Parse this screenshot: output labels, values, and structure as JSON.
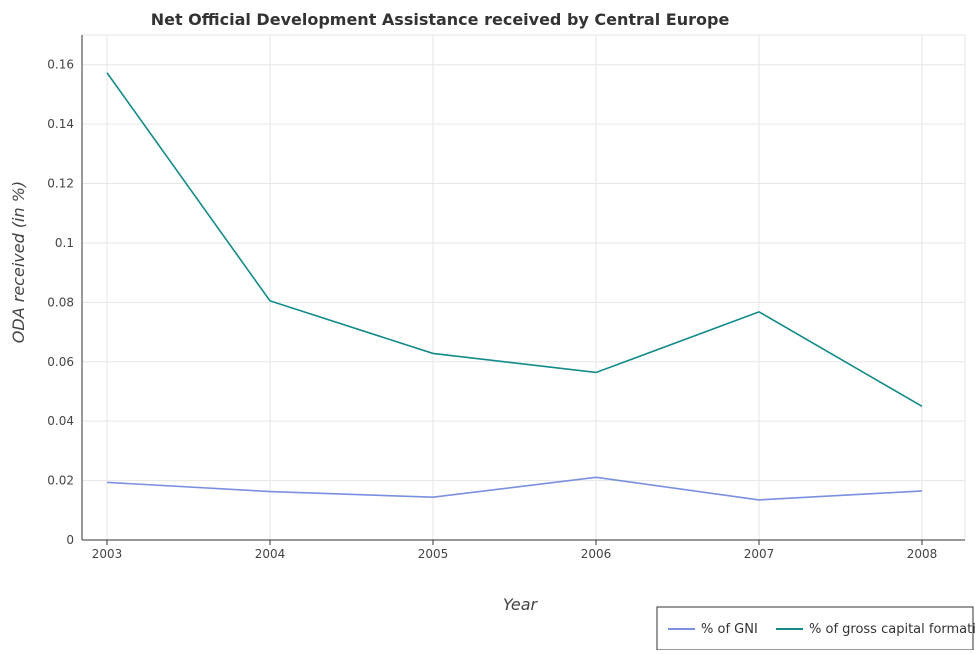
{
  "chart_data": {
    "type": "line",
    "title": "Net Official Development Assistance received by Central Europe",
    "xlabel": "Year",
    "ylabel": "ODA received (in %)",
    "categories": [
      "2003",
      "2004",
      "2005",
      "2006",
      "2007",
      "2008"
    ],
    "ylim": [
      0,
      0.17
    ],
    "yticks": [
      "0",
      "0.02",
      "0.04",
      "0.06",
      "0.08",
      "0.1",
      "0.12",
      "0.14",
      "0.16"
    ],
    "grid": true,
    "legend_position": "bottom-right",
    "series": [
      {
        "name": "% of GNI",
        "color": "#7b8fe0",
        "values": [
          0.0194,
          0.0163,
          0.0144,
          0.0211,
          0.0135,
          0.0165
        ]
      },
      {
        "name": "% of gross capital formation",
        "color": "#138a8a",
        "values": [
          0.1573,
          0.0805,
          0.0628,
          0.0564,
          0.0768,
          0.045
        ]
      }
    ]
  }
}
